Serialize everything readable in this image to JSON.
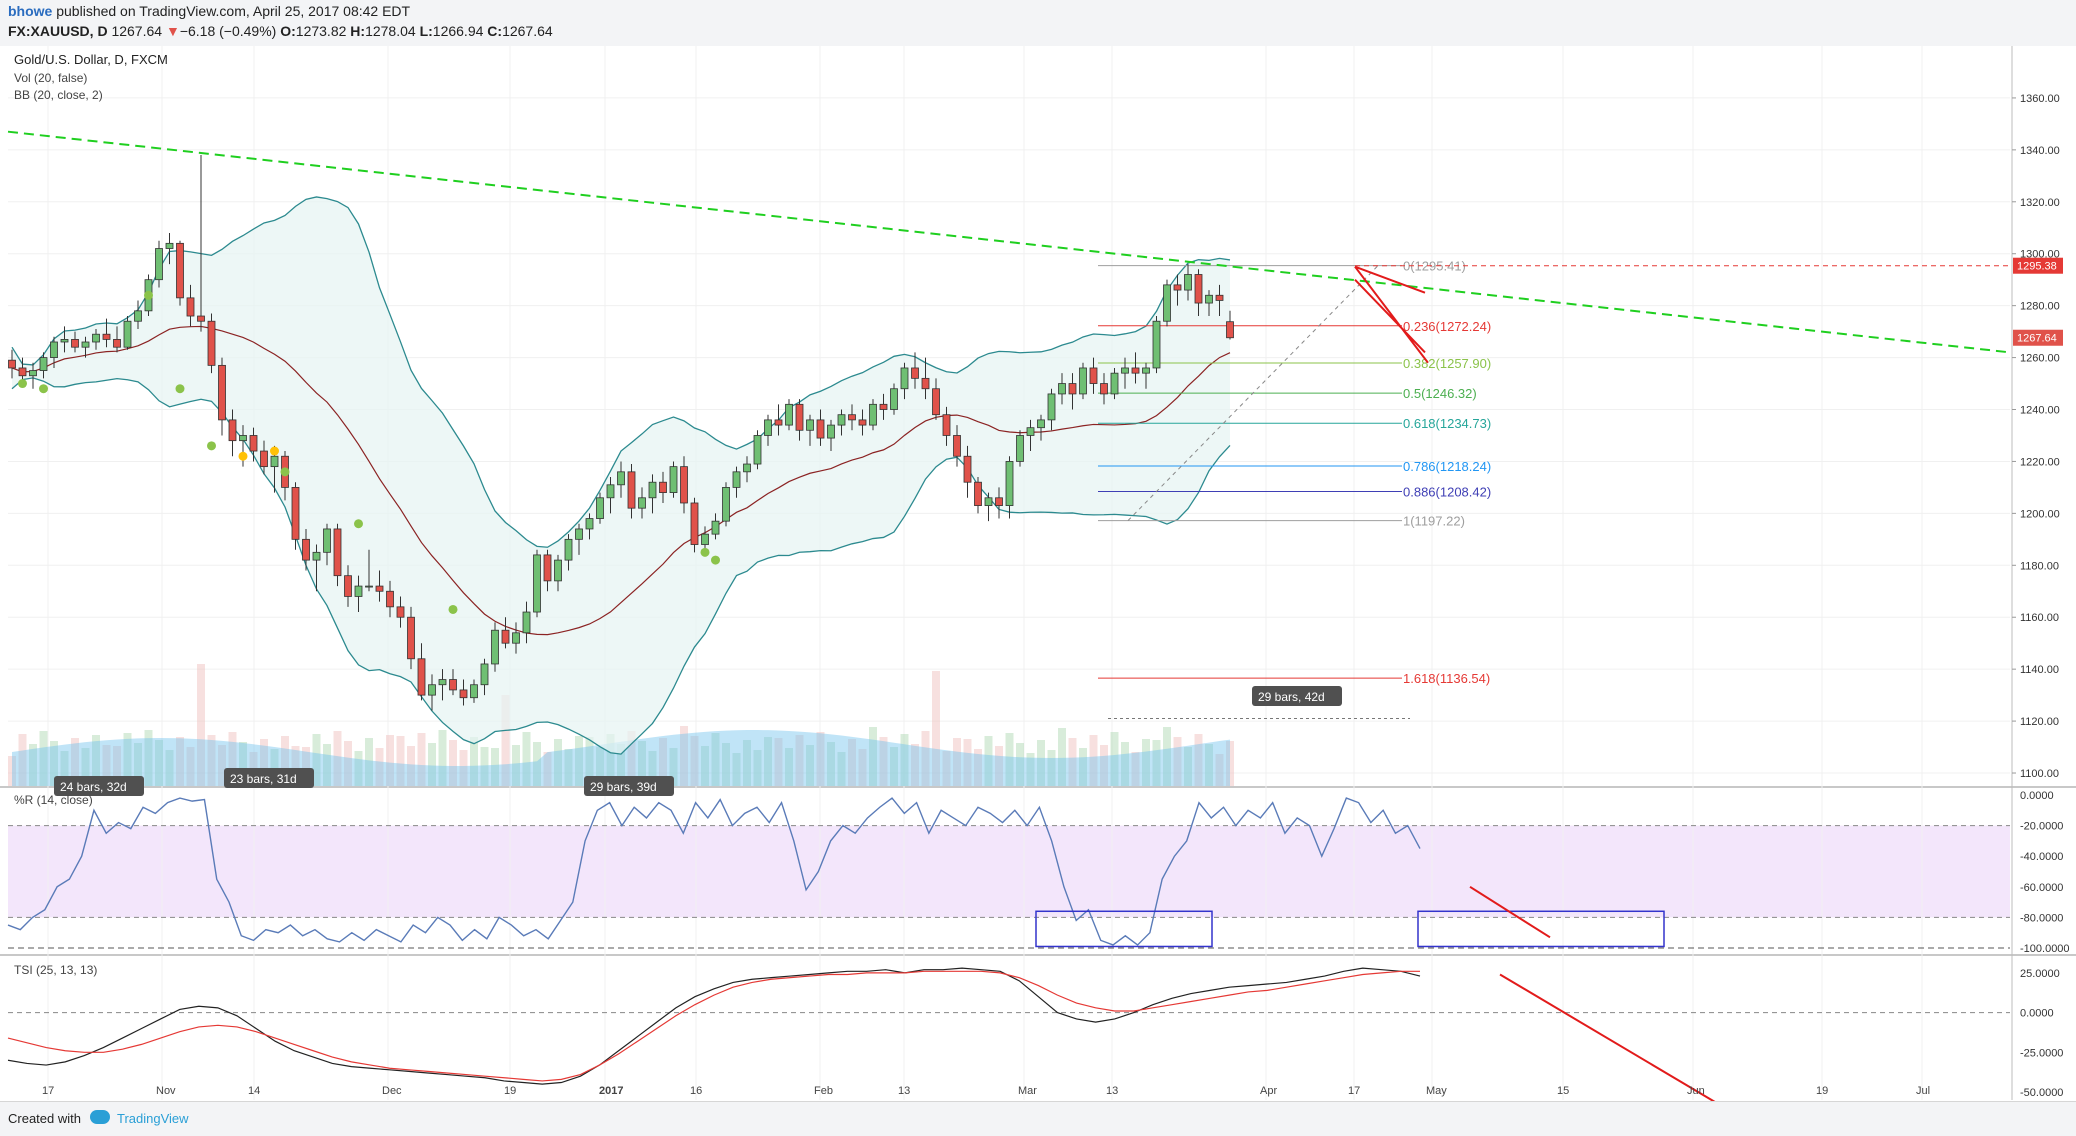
{
  "header": {
    "publisher": "bhowe",
    "published_text": "published on TradingView.com, April 25, 2017 08:42 EDT",
    "symbol": "FX:XAUUSD, D",
    "last": "1267.64",
    "change": "−6.18 (−0.49%)",
    "open_label": "O:",
    "open": "1273.82",
    "high_label": "H:",
    "high": "1278.04",
    "low_label": "L:",
    "low": "1266.94",
    "close_label": "C:",
    "close": "1267.64"
  },
  "legend": {
    "title": "Gold/U.S. Dollar, D, FXCM",
    "vol": "Vol (20, false)",
    "bb": "BB (20, close, 2)",
    "wr": "%R (14, close)",
    "tsi": "TSI (25, 13, 13)"
  },
  "footer": {
    "created_with": "Created with",
    "brand": "TradingView"
  },
  "colors": {
    "up": "#6fbf73",
    "down": "#e0524a",
    "bb": "#2c8a8f",
    "basis": "#8b2323",
    "trend": "#1fcf1f",
    "fib_box": "#3333cc",
    "arrow": "#e21b1b"
  },
  "chart_data": [
    {
      "type": "candlestick",
      "title": "Gold/U.S. Dollar, D, FXCM",
      "ylim": [
        1095,
        1380
      ],
      "y_ticks": [
        "1100.00",
        "1120.00",
        "1140.00",
        "1160.00",
        "1180.00",
        "1200.00",
        "1220.00",
        "1240.00",
        "1260.00",
        "1280.00",
        "1300.00",
        "1320.00",
        "1340.00",
        "1360.00"
      ],
      "x_ticks": [
        "17",
        "Nov",
        "14",
        "Dec",
        "19",
        "2017",
        "16",
        "Feb",
        "13",
        "Mar",
        "13",
        "Apr",
        "17",
        "May",
        "15",
        "Jun",
        "19",
        "Jul"
      ],
      "ohlc": [
        [
          1259,
          1263,
          1252,
          1256
        ],
        [
          1256,
          1260,
          1250,
          1253
        ],
        [
          1253,
          1258,
          1248,
          1255
        ],
        [
          1255,
          1262,
          1252,
          1260
        ],
        [
          1260,
          1268,
          1256,
          1266
        ],
        [
          1266,
          1272,
          1262,
          1267
        ],
        [
          1267,
          1270,
          1262,
          1264
        ],
        [
          1264,
          1268,
          1260,
          1266
        ],
        [
          1266,
          1271,
          1263,
          1269
        ],
        [
          1269,
          1275,
          1264,
          1267
        ],
        [
          1267,
          1272,
          1262,
          1264
        ],
        [
          1264,
          1276,
          1263,
          1274
        ],
        [
          1274,
          1282,
          1271,
          1278
        ],
        [
          1278,
          1292,
          1276,
          1290
        ],
        [
          1290,
          1305,
          1287,
          1302
        ],
        [
          1302,
          1308,
          1296,
          1304
        ],
        [
          1304,
          1305,
          1280,
          1283
        ],
        [
          1283,
          1288,
          1272,
          1276
        ],
        [
          1276,
          1338,
          1270,
          1274
        ],
        [
          1274,
          1277,
          1254,
          1257
        ],
        [
          1257,
          1260,
          1230,
          1236
        ],
        [
          1236,
          1240,
          1222,
          1228
        ],
        [
          1228,
          1234,
          1218,
          1230
        ],
        [
          1230,
          1233,
          1220,
          1224
        ],
        [
          1224,
          1228,
          1215,
          1218
        ],
        [
          1218,
          1226,
          1208,
          1222
        ],
        [
          1222,
          1224,
          1205,
          1210
        ],
        [
          1210,
          1212,
          1186,
          1190
        ],
        [
          1190,
          1194,
          1178,
          1182
        ],
        [
          1182,
          1188,
          1170,
          1185
        ],
        [
          1185,
          1196,
          1180,
          1194
        ],
        [
          1194,
          1196,
          1172,
          1176
        ],
        [
          1176,
          1180,
          1164,
          1168
        ],
        [
          1168,
          1176,
          1162,
          1172
        ],
        [
          1172,
          1186,
          1170,
          1172
        ],
        [
          1172,
          1178,
          1166,
          1170
        ],
        [
          1170,
          1174,
          1160,
          1164
        ],
        [
          1164,
          1168,
          1156,
          1160
        ],
        [
          1160,
          1164,
          1140,
          1144
        ],
        [
          1144,
          1150,
          1128,
          1130
        ],
        [
          1130,
          1138,
          1124,
          1134
        ],
        [
          1134,
          1140,
          1128,
          1136
        ],
        [
          1136,
          1140,
          1130,
          1132
        ],
        [
          1132,
          1136,
          1126,
          1129
        ],
        [
          1129,
          1136,
          1127,
          1134
        ],
        [
          1134,
          1144,
          1130,
          1142
        ],
        [
          1142,
          1158,
          1139,
          1155
        ],
        [
          1155,
          1160,
          1148,
          1150
        ],
        [
          1150,
          1158,
          1146,
          1154
        ],
        [
          1154,
          1166,
          1150,
          1162
        ],
        [
          1162,
          1186,
          1160,
          1184
        ],
        [
          1184,
          1186,
          1170,
          1174
        ],
        [
          1174,
          1184,
          1170,
          1182
        ],
        [
          1182,
          1192,
          1178,
          1190
        ],
        [
          1190,
          1196,
          1184,
          1194
        ],
        [
          1194,
          1200,
          1190,
          1198
        ],
        [
          1198,
          1208,
          1196,
          1206
        ],
        [
          1206,
          1214,
          1200,
          1211
        ],
        [
          1211,
          1220,
          1206,
          1216
        ],
        [
          1216,
          1219,
          1198,
          1202
        ],
        [
          1202,
          1210,
          1198,
          1206
        ],
        [
          1206,
          1215,
          1200,
          1212
        ],
        [
          1212,
          1216,
          1204,
          1208
        ],
        [
          1208,
          1220,
          1206,
          1218
        ],
        [
          1218,
          1222,
          1200,
          1204
        ],
        [
          1204,
          1206,
          1185,
          1188
        ],
        [
          1188,
          1195,
          1184,
          1192
        ],
        [
          1192,
          1200,
          1190,
          1197
        ],
        [
          1197,
          1212,
          1195,
          1210
        ],
        [
          1210,
          1218,
          1206,
          1216
        ],
        [
          1216,
          1222,
          1212,
          1219
        ],
        [
          1219,
          1232,
          1217,
          1230
        ],
        [
          1230,
          1238,
          1226,
          1236
        ],
        [
          1236,
          1242,
          1230,
          1234
        ],
        [
          1234,
          1244,
          1232,
          1242
        ],
        [
          1242,
          1244,
          1228,
          1232
        ],
        [
          1232,
          1238,
          1226,
          1236
        ],
        [
          1236,
          1240,
          1226,
          1229
        ],
        [
          1229,
          1236,
          1224,
          1234
        ],
        [
          1234,
          1240,
          1230,
          1238
        ],
        [
          1238,
          1242,
          1232,
          1236
        ],
        [
          1236,
          1240,
          1230,
          1234
        ],
        [
          1234,
          1244,
          1232,
          1242
        ],
        [
          1242,
          1246,
          1236,
          1240
        ],
        [
          1240,
          1250,
          1238,
          1248
        ],
        [
          1248,
          1258,
          1244,
          1256
        ],
        [
          1256,
          1262,
          1248,
          1252
        ],
        [
          1252,
          1260,
          1244,
          1248
        ],
        [
          1248,
          1252,
          1236,
          1238
        ],
        [
          1238,
          1241,
          1226,
          1230
        ],
        [
          1230,
          1234,
          1218,
          1222
        ],
        [
          1222,
          1226,
          1206,
          1212
        ],
        [
          1212,
          1214,
          1200,
          1203
        ],
        [
          1203,
          1208,
          1197,
          1206
        ],
        [
          1206,
          1210,
          1198,
          1203
        ],
        [
          1203,
          1222,
          1198,
          1220
        ],
        [
          1220,
          1232,
          1218,
          1230
        ],
        [
          1230,
          1236,
          1224,
          1233
        ],
        [
          1233,
          1238,
          1228,
          1236
        ],
        [
          1236,
          1248,
          1232,
          1246
        ],
        [
          1246,
          1254,
          1242,
          1250
        ],
        [
          1250,
          1254,
          1240,
          1246
        ],
        [
          1246,
          1258,
          1244,
          1256
        ],
        [
          1256,
          1260,
          1246,
          1250
        ],
        [
          1250,
          1254,
          1242,
          1246
        ],
        [
          1246,
          1256,
          1244,
          1254
        ],
        [
          1254,
          1260,
          1248,
          1256
        ],
        [
          1256,
          1262,
          1250,
          1254
        ],
        [
          1254,
          1258,
          1248,
          1256
        ],
        [
          1256,
          1276,
          1254,
          1274
        ],
        [
          1274,
          1290,
          1272,
          1288
        ],
        [
          1288,
          1292,
          1280,
          1286
        ],
        [
          1286,
          1296,
          1282,
          1292
        ],
        [
          1292,
          1294,
          1276,
          1281
        ],
        [
          1281,
          1286,
          1276,
          1284
        ],
        [
          1284,
          1288,
          1276,
          1282
        ],
        [
          1273.82,
          1278.04,
          1266.94,
          1267.64
        ]
      ],
      "fib_levels": [
        {
          "label": "0(1295.41)",
          "value": 1295.41
        },
        {
          "label": "0.236(1272.24)",
          "value": 1272.24
        },
        {
          "label": "0.382(1257.90)",
          "value": 1257.9
        },
        {
          "label": "0.5(1246.32)",
          "value": 1246.32
        },
        {
          "label": "0.618(1234.73)",
          "value": 1234.73
        },
        {
          "label": "0.786(1218.24)",
          "value": 1218.24
        },
        {
          "label": "0.886(1208.42)",
          "value": 1208.42
        },
        {
          "label": "1(1197.22)",
          "value": 1197.22
        },
        {
          "label": "1.618(1136.54)",
          "value": 1136.54
        }
      ],
      "price_tags": [
        "1295.38",
        "1267.64"
      ],
      "annotations": [
        "24 bars, 32d",
        "23 bars, 31d",
        "29 bars, 39d",
        "29 bars, 42d"
      ]
    },
    {
      "type": "line",
      "name": "%R (14, close)",
      "ylim": [
        -100,
        0
      ],
      "y_ticks": [
        "0.0000",
        "-20.0000",
        "-40.0000",
        "-60.0000",
        "-80.0000",
        "-100.0000"
      ],
      "values": [
        -85,
        -88,
        -80,
        -75,
        -60,
        -55,
        -40,
        -10,
        -25,
        -18,
        -22,
        -8,
        -12,
        -5,
        -2,
        -4,
        -3,
        -55,
        -70,
        -92,
        -95,
        -88,
        -90,
        -85,
        -92,
        -88,
        -94,
        -96,
        -90,
        -95,
        -88,
        -92,
        -96,
        -85,
        -90,
        -80,
        -85,
        -95,
        -88,
        -94,
        -80,
        -85,
        -92,
        -88,
        -94,
        -82,
        -70,
        -30,
        -10,
        -5,
        -20,
        -8,
        -15,
        -5,
        -10,
        -25,
        -5,
        -15,
        -3,
        -20,
        -12,
        -8,
        -18,
        -5,
        -30,
        -62,
        -50,
        -30,
        -20,
        -25,
        -15,
        -8,
        -2,
        -12,
        -5,
        -25,
        -10,
        -15,
        -20,
        -8,
        -12,
        -18,
        -10,
        -20,
        -8,
        -30,
        -60,
        -82,
        -75,
        -95,
        -98,
        -92,
        -98,
        -90,
        -55,
        -40,
        -30,
        -5,
        -15,
        -8,
        -20,
        -10,
        -15,
        -5,
        -25,
        -15,
        -20,
        -40,
        -22,
        -2,
        -5,
        -18,
        -10,
        -25,
        -20,
        -35
      ]
    },
    {
      "type": "line",
      "name": "TSI (25, 13, 13)",
      "ylim": [
        -55,
        35
      ],
      "y_ticks": [
        "25.0000",
        "0.0000",
        "-25.0000",
        "-50.0000"
      ],
      "series": [
        {
          "name": "TSI",
          "values": [
            -30,
            -32,
            -33,
            -31,
            -27,
            -22,
            -16,
            -10,
            -4,
            2,
            4,
            3,
            -2,
            -10,
            -18,
            -24,
            -28,
            -32,
            -34,
            -35,
            -36,
            -37,
            -38,
            -39,
            -40,
            -41,
            -43,
            -44,
            -45,
            -44,
            -40,
            -33,
            -24,
            -15,
            -6,
            3,
            10,
            15,
            19,
            21,
            22,
            23,
            24,
            25,
            26,
            26,
            27,
            25,
            27,
            27,
            28,
            27,
            26,
            20,
            10,
            0,
            -4,
            -6,
            -4,
            0,
            5,
            9,
            12,
            14,
            16,
            17,
            18,
            19,
            21,
            23,
            26,
            28,
            27,
            26,
            23
          ]
        },
        {
          "name": "Signal",
          "values": [
            -16,
            -19,
            -22,
            -24,
            -25,
            -25,
            -23,
            -20,
            -16,
            -12,
            -9,
            -8,
            -9,
            -12,
            -16,
            -20,
            -24,
            -28,
            -31,
            -33,
            -35,
            -36,
            -37,
            -38,
            -39,
            -40,
            -41,
            -42,
            -43,
            -42,
            -39,
            -33,
            -26,
            -18,
            -10,
            -2,
            5,
            11,
            16,
            19,
            21,
            22,
            23,
            24,
            24,
            25,
            25,
            25,
            26,
            26,
            26,
            26,
            25,
            22,
            17,
            11,
            6,
            3,
            1,
            1,
            3,
            5,
            7,
            9,
            11,
            13,
            14,
            16,
            18,
            20,
            22,
            24,
            25,
            26,
            26
          ]
        }
      ]
    }
  ]
}
